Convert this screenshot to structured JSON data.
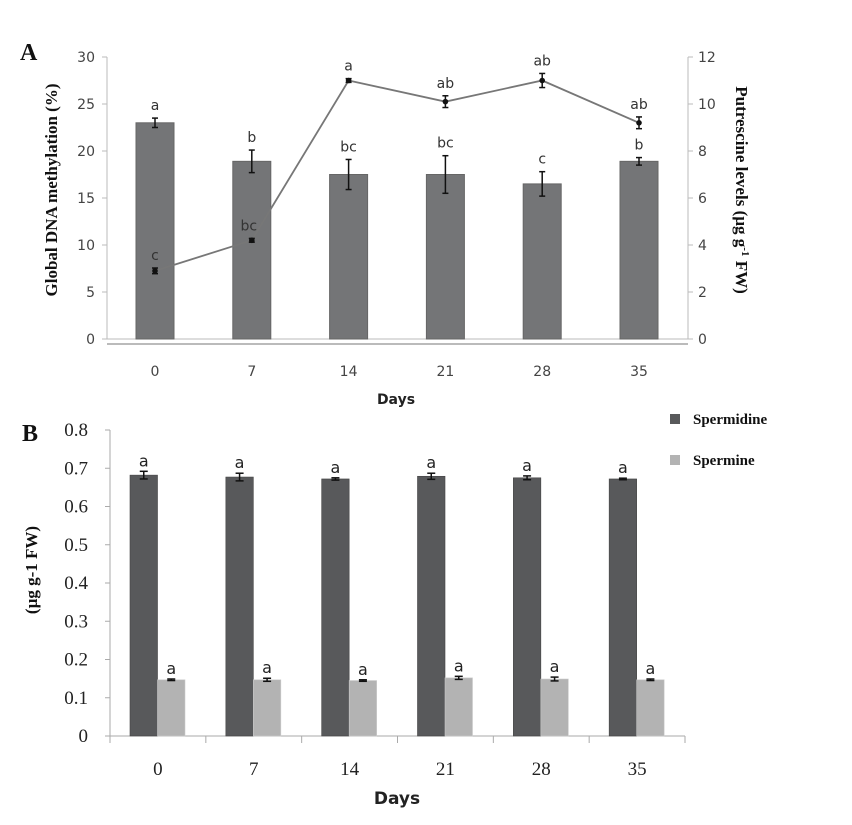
{
  "chart_data": [
    {
      "panel": "A",
      "type": "bar+line",
      "categories": [
        "0",
        "7",
        "14",
        "21",
        "28",
        "35"
      ],
      "xlabel": "Days",
      "ylabel": "Global DNA methylation (%)",
      "y2label": "Putrescine levels (µg g-1 FW)",
      "ylim": [
        0,
        30
      ],
      "yticks": [
        0,
        5,
        10,
        15,
        20,
        25,
        30
      ],
      "y2lim": [
        0,
        12
      ],
      "y2ticks": [
        0,
        2,
        4,
        6,
        8,
        10,
        12
      ],
      "grid": false,
      "bars": {
        "axis": "left",
        "color": "#747577",
        "values": [
          23.0,
          18.9,
          17.5,
          17.5,
          16.5,
          18.9
        ],
        "errors": [
          0.5,
          1.2,
          1.6,
          2.0,
          1.3,
          0.4
        ],
        "letters": [
          "a",
          "b",
          "bc",
          "bc",
          "c",
          "b"
        ]
      },
      "line": {
        "axis": "right",
        "color": "#777777",
        "values": [
          2.9,
          4.2,
          11.0,
          10.1,
          11.0,
          9.2
        ],
        "errors": [
          0.12,
          0.08,
          0.08,
          0.25,
          0.3,
          0.25
        ],
        "letters": [
          "c",
          "bc",
          "a",
          "ab",
          "ab",
          "ab"
        ]
      }
    },
    {
      "panel": "B",
      "type": "bar",
      "categories": [
        "0",
        "7",
        "14",
        "21",
        "28",
        "35"
      ],
      "xlabel": "Days",
      "ylabel": "(µg g-1 FW)",
      "ylim": [
        0,
        0.8
      ],
      "yticks": [
        "0",
        "0.1",
        "0.2",
        "0.3",
        "0.4",
        "0.5",
        "0.6",
        "0.7",
        "0.8"
      ],
      "grid": false,
      "legend_position": "top-right",
      "series": [
        {
          "name": "Spermidine",
          "color": "#58595b",
          "values": [
            0.682,
            0.677,
            0.672,
            0.679,
            0.675,
            0.672
          ],
          "errors": [
            0.01,
            0.01,
            0.003,
            0.008,
            0.005,
            0.002
          ],
          "letters": [
            "a",
            "a",
            "a",
            "a",
            "a",
            "a"
          ]
        },
        {
          "name": "Spermine",
          "color": "#b3b3b3",
          "values": [
            0.147,
            0.147,
            0.145,
            0.152,
            0.149,
            0.147
          ],
          "errors": [
            0.002,
            0.004,
            0.002,
            0.004,
            0.005,
            0.002
          ],
          "letters": [
            "a",
            "a",
            "a",
            "a",
            "a",
            "a"
          ]
        }
      ]
    }
  ]
}
